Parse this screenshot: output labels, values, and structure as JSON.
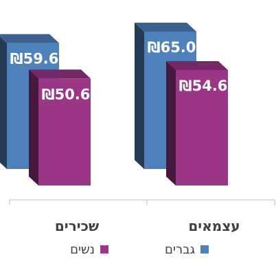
{
  "chart_data": {
    "type": "bar",
    "categories": [
      "עצמאים",
      "שכירים"
    ],
    "series": [
      {
        "name": "גברים",
        "values": [
          65.0,
          59.6
        ],
        "labels": [
          "₪65.0",
          "₪59.6"
        ],
        "color": "#4f81bd"
      },
      {
        "name": "נשים",
        "values": [
          54.6,
          50.6
        ],
        "labels": [
          "₪54.6",
          "₪50.6"
        ],
        "color": "#9b3586"
      }
    ],
    "title": "",
    "xlabel": "",
    "ylabel": "",
    "ylim": [
      0,
      70
    ],
    "grid": false,
    "legend_position": "bottom",
    "style": "3d-columns"
  }
}
